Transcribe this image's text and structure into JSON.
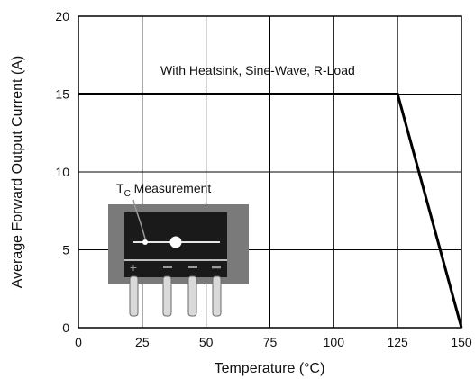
{
  "chart_data": {
    "type": "line",
    "title": "",
    "xlabel": "Temperature (°C)",
    "ylabel": "Average Forward Output Current (A)",
    "xlim": [
      0,
      150
    ],
    "ylim": [
      0,
      20
    ],
    "x_ticks": [
      "0",
      "25",
      "50",
      "75",
      "100",
      "125",
      "150"
    ],
    "y_ticks": [
      "0",
      "5",
      "10",
      "15",
      "20"
    ],
    "grid": true,
    "series": [
      {
        "name": "With Heatsink, Sine-Wave, R-Load",
        "x": [
          0,
          125,
          150
        ],
        "y": [
          15,
          15,
          0
        ]
      }
    ],
    "annotations": {
      "curve_label": "With Heatsink, Sine-Wave, R-Load",
      "tc_label_main": "T",
      "tc_label_sub": "C",
      "tc_label_rest": " Measurement"
    },
    "colors": {
      "line": "#000000",
      "grid": "#000000",
      "package_body": "#7a7a7a",
      "package_top": "#1a1a1a",
      "pins": "#d9d9d9"
    }
  }
}
